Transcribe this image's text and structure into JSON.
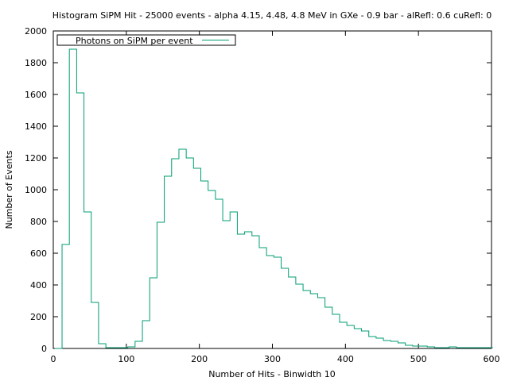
{
  "chart_data": {
    "type": "histogram-step",
    "title": "Histogram SiPM Hit - 25000 events - alpha 4.15, 4.48, 4.8 MeV  in GXe - 0.9 bar - alRefl: 0.6 cuRefl: 0",
    "xlabel": "Number of Hits - Binwidth 10",
    "ylabel": "Number of Events",
    "xlim": [
      0,
      600
    ],
    "ylim": [
      0,
      2000
    ],
    "xticks": [
      0,
      100,
      200,
      300,
      400,
      500,
      600
    ],
    "yticks": [
      0,
      200,
      400,
      600,
      800,
      1000,
      1200,
      1400,
      1600,
      1800,
      2000
    ],
    "legend_position": "top-left",
    "grid": false,
    "series": [
      {
        "name": "Photons on SiPM per event",
        "color": "#009e73",
        "bin_edges": [
          2,
          12,
          22,
          32,
          42,
          52,
          62,
          72,
          82,
          92,
          102,
          112,
          122,
          132,
          142,
          152,
          162,
          172,
          182,
          192,
          202,
          212,
          222,
          232,
          242,
          252,
          262,
          272,
          282,
          292,
          302,
          312,
          322,
          332,
          342,
          352,
          362,
          372,
          382,
          392,
          402,
          412,
          422,
          432,
          442,
          452,
          462,
          472,
          482,
          492,
          502,
          512,
          522,
          532,
          542,
          552,
          562,
          572,
          582,
          592,
          602
        ],
        "values": [
          0,
          655,
          1885,
          1610,
          860,
          290,
          30,
          5,
          5,
          5,
          10,
          45,
          175,
          445,
          795,
          1085,
          1195,
          1255,
          1200,
          1135,
          1055,
          995,
          940,
          805,
          860,
          720,
          735,
          710,
          635,
          585,
          575,
          505,
          450,
          405,
          365,
          345,
          320,
          260,
          215,
          165,
          145,
          125,
          110,
          75,
          65,
          50,
          45,
          35,
          20,
          15,
          15,
          10,
          5,
          5,
          10,
          5,
          5,
          5,
          5,
          5,
          5
        ]
      }
    ]
  }
}
